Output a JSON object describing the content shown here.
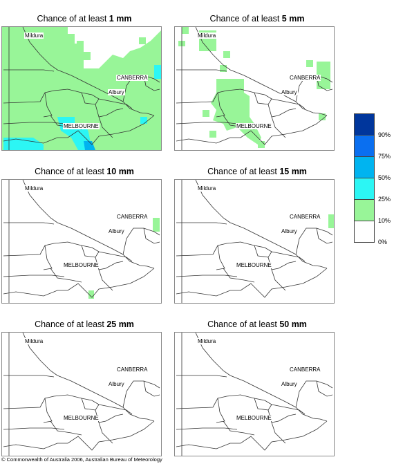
{
  "panels": [
    {
      "prefix": "Chance of at least ",
      "amount": "1 mm"
    },
    {
      "prefix": "Chance of at least ",
      "amount": "5 mm"
    },
    {
      "prefix": "Chance of at least ",
      "amount": "10 mm"
    },
    {
      "prefix": "Chance of at least ",
      "amount": "15 mm"
    },
    {
      "prefix": "Chance of at least ",
      "amount": "25 mm"
    },
    {
      "prefix": "Chance of at least ",
      "amount": "50 mm"
    }
  ],
  "cities": {
    "mildura": "Mildura",
    "canberra": "CANBERRA",
    "albury": "Albury",
    "melbourne": "MELBOURNE"
  },
  "legend": {
    "labels": [
      "90%",
      "75%",
      "50%",
      "25%",
      "10%",
      "0%"
    ],
    "colors": [
      "#00369c",
      "#0a6ff0",
      "#00b4f0",
      "#2cf6f4",
      "#98f598",
      "#ffffff"
    ]
  },
  "copyright": "© Commonwealth of Australia 2006, Australian Bureau of Meteorology"
}
